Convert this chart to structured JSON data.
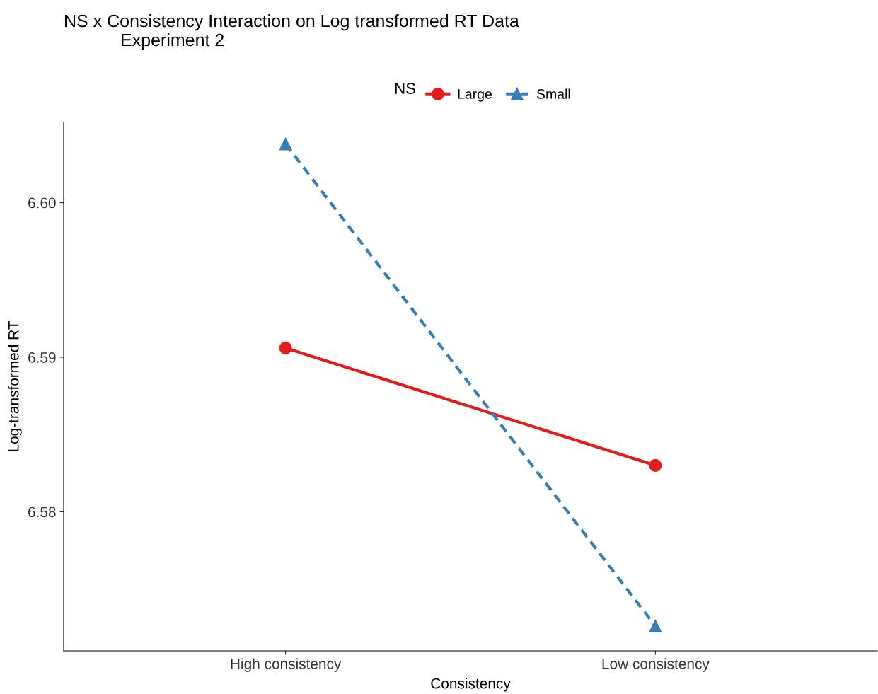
{
  "chart_data": {
    "type": "line",
    "title": "NS x Consistency Interaction on Log transformed RT Data\nExperiment 2",
    "xlabel": "Consistency",
    "ylabel": "Log-transformed RT",
    "legend_title": "NS",
    "categories": [
      "High consistency",
      "Low consistency"
    ],
    "series": [
      {
        "name": "Large",
        "color": "#e41a1c",
        "values": [
          6.5906,
          6.583
        ],
        "marker": "circle",
        "line_style": "solid"
      },
      {
        "name": "Small",
        "color": "#377eb8",
        "values": [
          6.6038,
          6.5726
        ],
        "marker": "triangle",
        "line_style": "dashed"
      }
    ],
    "ylim": [
      6.571,
      6.6052
    ],
    "yticks": [
      {
        "value": 6.58,
        "label": "6.58"
      },
      {
        "value": 6.59,
        "label": "6.59"
      },
      {
        "value": 6.6,
        "label": "6.60"
      }
    ],
    "grid": false,
    "legend": "top"
  }
}
